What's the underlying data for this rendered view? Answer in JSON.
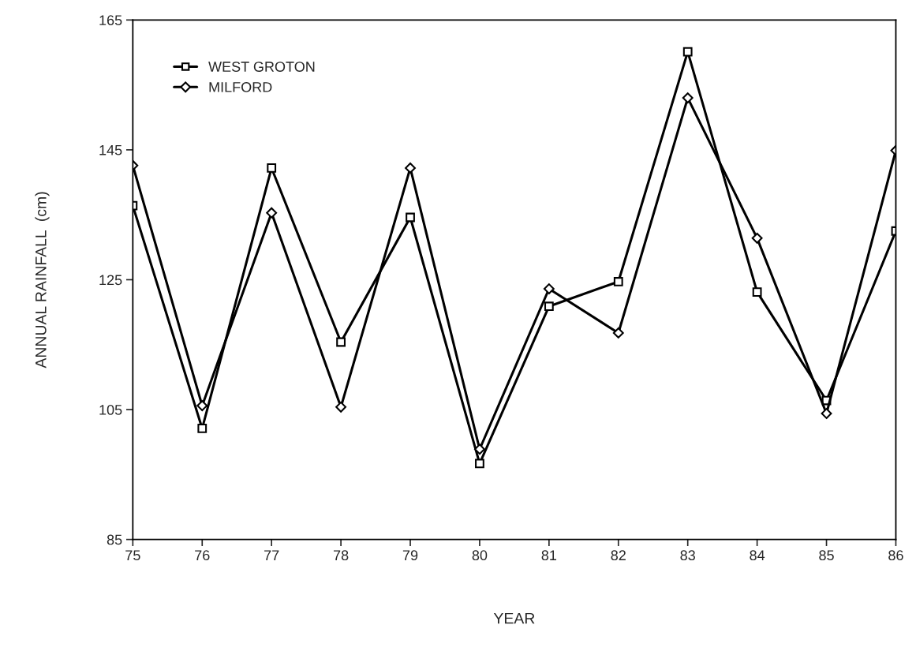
{
  "chart_data": {
    "type": "line",
    "xlabel": "YEAR",
    "ylabel": "ANNUAL RAINFALL  (cm)",
    "categories": [
      "75",
      "76",
      "77",
      "78",
      "79",
      "80",
      "81",
      "82",
      "83",
      "84",
      "85",
      "86"
    ],
    "series": [
      {
        "name": "WEST GROTON",
        "color": "#000000",
        "marker": "square",
        "values": [
          136.4,
          102.1,
          142.2,
          115.4,
          134.6,
          96.7,
          120.9,
          124.7,
          160.1,
          123.1,
          106.4,
          132.5
        ]
      },
      {
        "name": "MILFORD",
        "color": "#000000",
        "marker": "diamond",
        "values": [
          142.6,
          105.6,
          135.3,
          105.4,
          142.2,
          98.9,
          123.6,
          116.8,
          153.0,
          131.4,
          104.4,
          144.9
        ]
      }
    ],
    "ylim": [
      85,
      165
    ],
    "yticks": [
      85,
      105,
      125,
      145,
      165
    ],
    "grid": false,
    "legend": "top left",
    "line_style": "solid"
  }
}
